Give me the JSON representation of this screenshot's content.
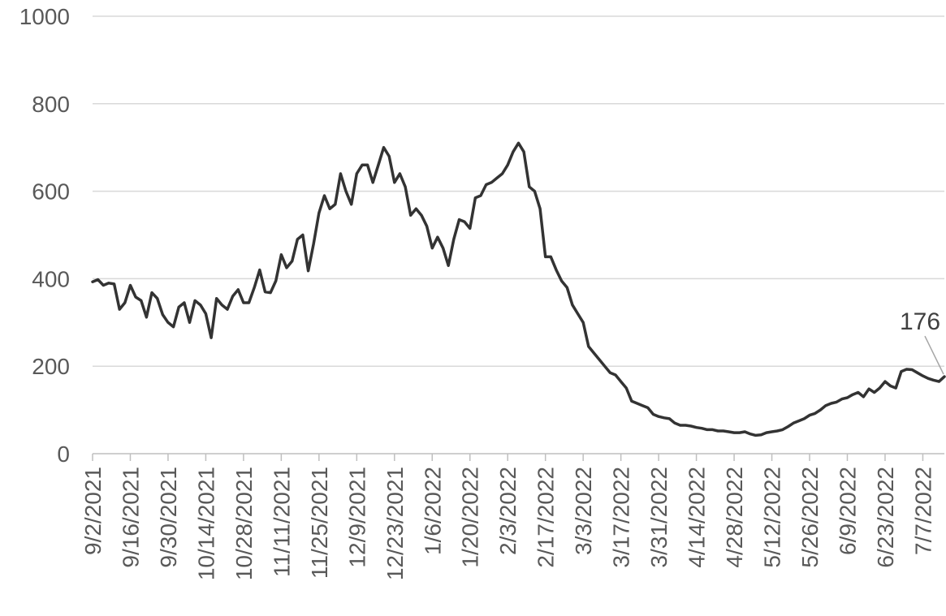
{
  "chart_data": {
    "type": "line",
    "title": "",
    "xlabel": "",
    "ylabel": "",
    "ylim": [
      0,
      1000
    ],
    "y_ticks": [
      "0",
      "200",
      "400",
      "600",
      "800",
      "1000"
    ],
    "x_tick_labels": [
      "9/2/2021",
      "9/16/2021",
      "9/30/2021",
      "10/14/2021",
      "10/28/2021",
      "11/11/2021",
      "11/25/2021",
      "12/9/2021",
      "12/23/2021",
      "1/6/2022",
      "1/20/2022",
      "2/3/2022",
      "2/17/2022",
      "3/3/2022",
      "3/17/2022",
      "3/31/2022",
      "4/14/2022",
      "4/28/2022",
      "5/12/2022",
      "5/26/2022",
      "6/9/2022",
      "6/23/2022",
      "7/7/2022"
    ],
    "grid": true,
    "line_color": "#333333",
    "series": [
      {
        "x": [
          "9/2/2021",
          "9/4/2021",
          "9/6/2021",
          "9/8/2021",
          "9/10/2021",
          "9/12/2021",
          "9/14/2021",
          "9/16/2021",
          "9/18/2021",
          "9/20/2021",
          "9/22/2021",
          "9/24/2021",
          "9/26/2021",
          "9/28/2021",
          "9/30/2021",
          "10/2/2021",
          "10/4/2021",
          "10/6/2021",
          "10/8/2021",
          "10/10/2021",
          "10/12/2021",
          "10/14/2021",
          "10/16/2021",
          "10/18/2021",
          "10/20/2021",
          "10/22/2021",
          "10/24/2021",
          "10/26/2021",
          "10/28/2021",
          "10/30/2021",
          "11/1/2021",
          "11/3/2021",
          "11/5/2021",
          "11/7/2021",
          "11/9/2021",
          "11/11/2021",
          "11/13/2021",
          "11/15/2021",
          "11/17/2021",
          "11/19/2021",
          "11/21/2021",
          "11/23/2021",
          "11/25/2021",
          "11/27/2021",
          "11/29/2021",
          "12/1/2021",
          "12/3/2021",
          "12/5/2021",
          "12/7/2021",
          "12/9/2021",
          "12/11/2021",
          "12/13/2021",
          "12/15/2021",
          "12/17/2021",
          "12/19/2021",
          "12/21/2021",
          "12/23/2021",
          "12/25/2021",
          "12/27/2021",
          "12/29/2021",
          "12/31/2021",
          "1/2/2022",
          "1/4/2022",
          "1/6/2022",
          "1/8/2022",
          "1/10/2022",
          "1/12/2022",
          "1/14/2022",
          "1/16/2022",
          "1/18/2022",
          "1/20/2022",
          "1/22/2022",
          "1/24/2022",
          "1/26/2022",
          "1/28/2022",
          "1/30/2022",
          "2/1/2022",
          "2/3/2022",
          "2/5/2022",
          "2/7/2022",
          "2/9/2022",
          "2/11/2022",
          "2/13/2022",
          "2/15/2022",
          "2/17/2022",
          "2/19/2022",
          "2/21/2022",
          "2/23/2022",
          "2/25/2022",
          "2/27/2022",
          "3/1/2022",
          "3/3/2022",
          "3/5/2022",
          "3/7/2022",
          "3/9/2022",
          "3/11/2022",
          "3/13/2022",
          "3/15/2022",
          "3/17/2022",
          "3/19/2022",
          "3/21/2022",
          "3/23/2022",
          "3/25/2022",
          "3/27/2022",
          "3/29/2022",
          "3/31/2022",
          "4/2/2022",
          "4/4/2022",
          "4/6/2022",
          "4/8/2022",
          "4/10/2022",
          "4/12/2022",
          "4/14/2022",
          "4/16/2022",
          "4/18/2022",
          "4/20/2022",
          "4/22/2022",
          "4/24/2022",
          "4/26/2022",
          "4/28/2022",
          "4/30/2022",
          "5/2/2022",
          "5/4/2022",
          "5/6/2022",
          "5/8/2022",
          "5/10/2022",
          "5/12/2022",
          "5/14/2022",
          "5/16/2022",
          "5/18/2022",
          "5/20/2022",
          "5/22/2022",
          "5/24/2022",
          "5/26/2022",
          "5/28/2022",
          "5/30/2022",
          "6/1/2022",
          "6/3/2022",
          "6/5/2022",
          "6/7/2022",
          "6/9/2022",
          "6/11/2022",
          "6/13/2022",
          "6/15/2022",
          "6/17/2022",
          "6/19/2022",
          "6/21/2022",
          "6/23/2022",
          "6/25/2022",
          "6/27/2022",
          "6/29/2022",
          "7/1/2022",
          "7/3/2022",
          "7/5/2022",
          "7/7/2022",
          "7/9/2022",
          "7/11/2022",
          "7/13/2022",
          "7/15/2022"
        ],
        "y": [
          393,
          398,
          385,
          390,
          388,
          330,
          345,
          385,
          358,
          350,
          312,
          368,
          355,
          318,
          300,
          290,
          335,
          345,
          300,
          350,
          340,
          320,
          265,
          355,
          340,
          330,
          360,
          375,
          345,
          345,
          380,
          420,
          370,
          368,
          395,
          455,
          425,
          440,
          490,
          500,
          418,
          480,
          550,
          590,
          560,
          570,
          640,
          600,
          570,
          640,
          660,
          660,
          620,
          660,
          700,
          680,
          620,
          640,
          610,
          545,
          560,
          545,
          520,
          470,
          495,
          470,
          430,
          490,
          535,
          530,
          515,
          585,
          590,
          615,
          620,
          630,
          640,
          660,
          690,
          710,
          690,
          610,
          600,
          560,
          450,
          450,
          420,
          395,
          380,
          340,
          320,
          300,
          245,
          230,
          215,
          200,
          185,
          180,
          165,
          150,
          120,
          115,
          110,
          105,
          90,
          85,
          82,
          80,
          70,
          65,
          65,
          63,
          60,
          58,
          55,
          55,
          52,
          52,
          50,
          48,
          48,
          50,
          45,
          42,
          43,
          48,
          50,
          52,
          55,
          62,
          70,
          75,
          80,
          88,
          92,
          100,
          110,
          115,
          118,
          125,
          128,
          135,
          140,
          130,
          148,
          140,
          150,
          165,
          155,
          150,
          188,
          193,
          192,
          185,
          178,
          172,
          168,
          165,
          176
        ]
      }
    ],
    "annotations": [
      {
        "text": "176",
        "x": "7/15/2022",
        "y": 176
      }
    ]
  }
}
